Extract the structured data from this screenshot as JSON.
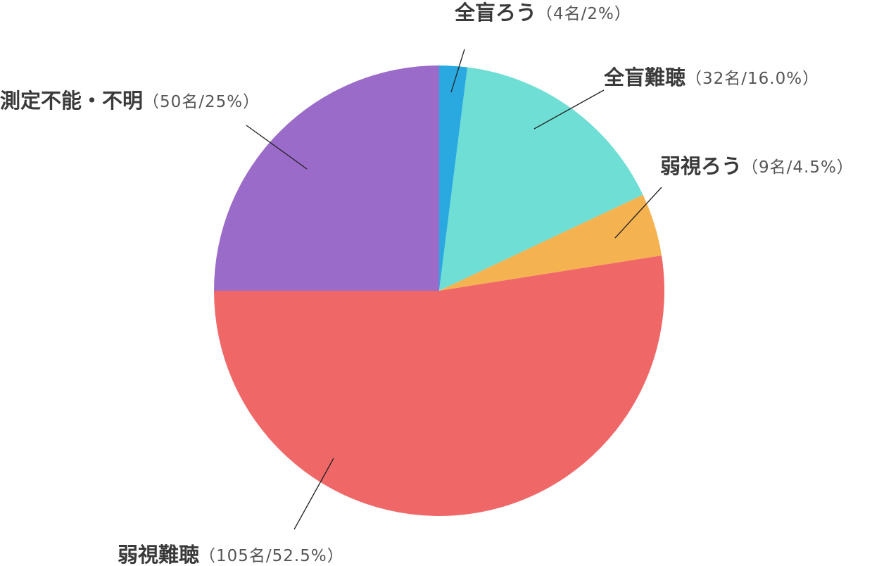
{
  "chart_data": {
    "type": "pie",
    "categories": [
      "全盲ろう",
      "全盲難聴",
      "弱視ろう",
      "弱視難聴",
      "測定不能・不明"
    ],
    "values": [
      2,
      16.0,
      4.5,
      52.5,
      25
    ],
    "value_labels": [
      "（4名/2%）",
      "（32名/16.0%）",
      "（9名/4.5%）",
      "（105名/52.5%）",
      "（50名/25%）"
    ],
    "colors": [
      "#2aa9e1",
      "#6fded4",
      "#f5b251",
      "#f06767",
      "#9b6bc9"
    ]
  }
}
